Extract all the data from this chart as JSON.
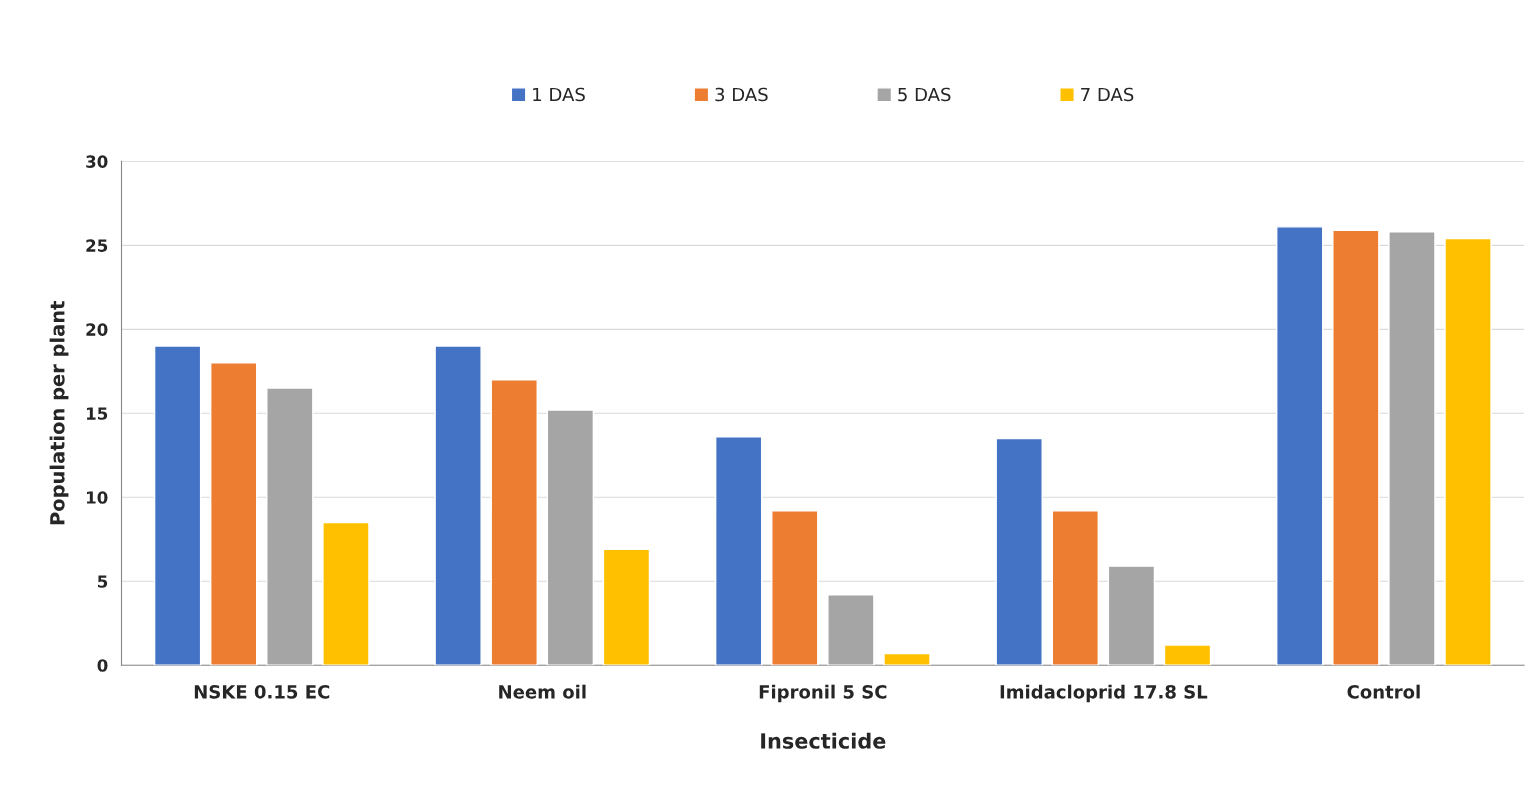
{
  "chart_data": {
    "type": "bar",
    "xlabel": "Insecticide",
    "ylabel": "Population per plant",
    "categories": [
      "NSKE 0.15 EC",
      "Neem oil",
      "Fipronil 5 SC",
      "Imidacloprid 17.8 SL",
      "Control"
    ],
    "series": [
      {
        "name": "1 DAS",
        "color": "#4472c4",
        "values": [
          19.0,
          19.0,
          13.6,
          13.5,
          26.1
        ]
      },
      {
        "name": "3 DAS",
        "color": "#ed7d31",
        "values": [
          18.0,
          17.0,
          9.2,
          9.2,
          25.9
        ]
      },
      {
        "name": "5 DAS",
        "color": "#a5a5a5",
        "values": [
          16.5,
          15.2,
          4.2,
          5.9,
          25.8
        ]
      },
      {
        "name": "7 DAS",
        "color": "#ffc000",
        "values": [
          8.5,
          6.9,
          0.7,
          1.2,
          25.4
        ]
      }
    ],
    "ylim": [
      0,
      30
    ],
    "yticks": [
      0,
      5,
      10,
      15,
      20,
      25,
      30
    ],
    "grid": "y",
    "legend": "top"
  }
}
